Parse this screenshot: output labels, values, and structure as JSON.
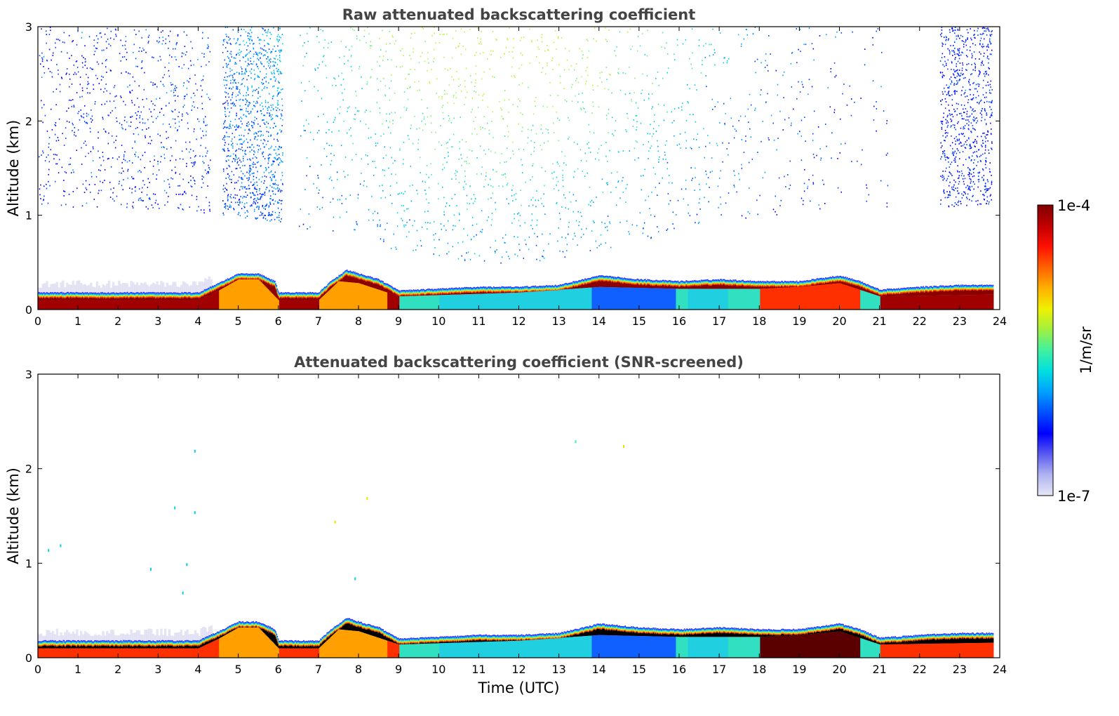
{
  "chart_data": [
    {
      "type": "heatmap",
      "title": "Raw attenuated backscattering coefficient",
      "xlabel": "",
      "ylabel": "Altitude (km)",
      "xlim": [
        0,
        24
      ],
      "ylim": [
        0,
        3
      ],
      "x_ticks": [
        "0",
        "1",
        "2",
        "3",
        "4",
        "5",
        "6",
        "7",
        "8",
        "9",
        "10",
        "11",
        "12",
        "13",
        "14",
        "15",
        "16",
        "17",
        "18",
        "19",
        "20",
        "21",
        "22",
        "23",
        "24"
      ],
      "y_ticks": [
        "0",
        "1",
        "2",
        "3"
      ],
      "layer_top_km": [
        [
          0,
          0.18
        ],
        [
          1,
          0.18
        ],
        [
          2,
          0.18
        ],
        [
          3,
          0.18
        ],
        [
          4,
          0.18
        ],
        [
          4.5,
          0.28
        ],
        [
          5,
          0.38
        ],
        [
          5.5,
          0.38
        ],
        [
          5.9,
          0.3
        ],
        [
          6,
          0.18
        ],
        [
          7,
          0.18
        ],
        [
          7.3,
          0.3
        ],
        [
          7.7,
          0.42
        ],
        [
          8,
          0.38
        ],
        [
          8.5,
          0.32
        ],
        [
          9,
          0.2
        ],
        [
          10,
          0.22
        ],
        [
          11,
          0.24
        ],
        [
          12,
          0.24
        ],
        [
          13,
          0.26
        ],
        [
          14,
          0.36
        ],
        [
          15,
          0.32
        ],
        [
          16,
          0.3
        ],
        [
          17,
          0.32
        ],
        [
          18,
          0.3
        ],
        [
          19,
          0.3
        ],
        [
          20,
          0.36
        ],
        [
          20.5,
          0.3
        ],
        [
          21,
          0.21
        ],
        [
          22,
          0.24
        ],
        [
          23,
          0.26
        ],
        [
          23.8,
          0.26
        ]
      ],
      "dense_layer_top_km": [
        [
          0,
          0.1
        ],
        [
          4,
          0.1
        ],
        [
          4.5,
          0.2
        ],
        [
          5,
          0.32
        ],
        [
          5.5,
          0.32
        ],
        [
          6,
          0.1
        ],
        [
          7,
          0.1
        ],
        [
          7.5,
          0.3
        ],
        [
          8,
          0.28
        ],
        [
          9,
          0.14
        ],
        [
          12,
          0.18
        ],
        [
          14,
          0.24
        ],
        [
          16,
          0.22
        ],
        [
          18,
          0.22
        ],
        [
          19,
          0.24
        ],
        [
          20,
          0.28
        ],
        [
          21,
          0.14
        ],
        [
          24,
          0.16
        ]
      ],
      "shallow_blue_regions_km": [
        [
          13.8,
          15.9
        ],
        [
          16.2,
          17.2
        ],
        [
          10,
          13.8
        ]
      ],
      "scatter_time_ranges": [
        [
          0,
          4.3
        ],
        [
          4.6,
          6.1
        ],
        [
          6.5,
          21.2
        ],
        [
          22.5,
          23.8
        ]
      ]
    },
    {
      "type": "heatmap",
      "title": "Attenuated backscattering coefficient (SNR-screened)",
      "xlabel": "Time (UTC)",
      "ylabel": "Altitude (km)",
      "xlim": [
        0,
        24
      ],
      "ylim": [
        0,
        3
      ],
      "x_ticks": [
        "0",
        "1",
        "2",
        "3",
        "4",
        "5",
        "6",
        "7",
        "8",
        "9",
        "10",
        "11",
        "12",
        "13",
        "14",
        "15",
        "16",
        "17",
        "18",
        "19",
        "20",
        "21",
        "22",
        "23",
        "24"
      ],
      "y_ticks": [
        "0",
        "1",
        "2",
        "3"
      ],
      "note_black": "saturated core drawn in black"
    }
  ],
  "colorbar": {
    "max_label": "1e-4",
    "min_label": "1e-7",
    "unit_label": "1/m/sr",
    "stops": [
      "#e6e6f5",
      "#b0b4f0",
      "#5a5af0",
      "#0000ff",
      "#0050ff",
      "#00a0ff",
      "#00e0e0",
      "#40f0a0",
      "#a0f040",
      "#f0f000",
      "#ffb000",
      "#ff6000",
      "#ff1000",
      "#c00000",
      "#800000"
    ]
  }
}
